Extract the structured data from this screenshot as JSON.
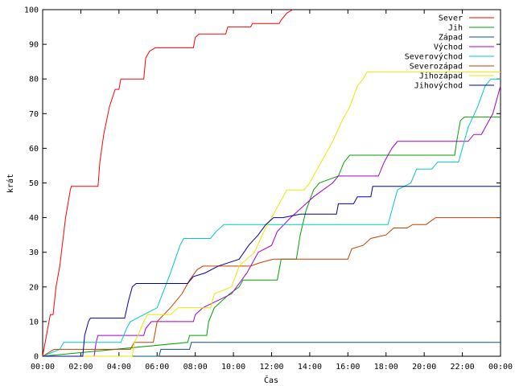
{
  "chart_data": {
    "type": "line",
    "xlabel": "Čas",
    "ylabel": "krát",
    "xlim": [
      0,
      24
    ],
    "ylim": [
      0,
      100
    ],
    "xticks": [
      "00:00",
      "02:00",
      "04:00",
      "06:00",
      "08:00",
      "10:00",
      "12:00",
      "14:00",
      "16:00",
      "18:00",
      "20:00",
      "22:00",
      "00:00"
    ],
    "yticks": [
      "0",
      "10",
      "20",
      "30",
      "40",
      "50",
      "60",
      "70",
      "80",
      "90",
      "100"
    ],
    "legend_position": "top-right",
    "series": [
      {
        "name": "Sever",
        "color": "#ff0000",
        "points": [
          [
            0,
            0
          ],
          [
            0.2,
            6
          ],
          [
            0.4,
            12
          ],
          [
            0.55,
            12
          ],
          [
            0.7,
            20
          ],
          [
            0.9,
            26
          ],
          [
            1.2,
            40
          ],
          [
            1.45,
            48
          ],
          [
            1.5,
            49
          ],
          [
            2.9,
            49
          ],
          [
            3.0,
            56
          ],
          [
            3.2,
            64
          ],
          [
            3.5,
            72
          ],
          [
            3.8,
            77
          ],
          [
            4.0,
            77
          ],
          [
            4.1,
            80
          ],
          [
            5.3,
            80
          ],
          [
            5.4,
            86
          ],
          [
            5.6,
            88
          ],
          [
            5.9,
            89
          ],
          [
            7.9,
            89
          ],
          [
            8.0,
            92
          ],
          [
            8.2,
            93
          ],
          [
            9.6,
            93
          ],
          [
            9.7,
            95
          ],
          [
            10.9,
            95
          ],
          [
            11.0,
            96
          ],
          [
            12.4,
            96
          ],
          [
            12.5,
            97
          ],
          [
            12.8,
            99
          ],
          [
            13.1,
            100
          ]
        ]
      },
      {
        "name": "Jih",
        "color": "#00a000",
        "points": [
          [
            0,
            0
          ],
          [
            7.6,
            4
          ],
          [
            7.7,
            6
          ],
          [
            8.6,
            6
          ],
          [
            8.7,
            10
          ],
          [
            9.0,
            14
          ],
          [
            9.8,
            18
          ],
          [
            10.3,
            20
          ],
          [
            10.5,
            22
          ],
          [
            12.3,
            22
          ],
          [
            12.5,
            28
          ],
          [
            13.3,
            28
          ],
          [
            13.5,
            35
          ],
          [
            13.8,
            42
          ],
          [
            14.2,
            48
          ],
          [
            14.5,
            50
          ],
          [
            15.5,
            52
          ],
          [
            15.8,
            56
          ],
          [
            16.1,
            58
          ],
          [
            21.6,
            58
          ],
          [
            21.7,
            62
          ],
          [
            21.9,
            68
          ],
          [
            22.1,
            69
          ],
          [
            24,
            69
          ]
        ]
      },
      {
        "name": "Západ",
        "color": "#00508f",
        "points": [
          [
            0,
            0
          ],
          [
            6.1,
            0
          ],
          [
            6.2,
            2
          ],
          [
            7.7,
            2
          ],
          [
            7.8,
            4
          ],
          [
            24,
            4
          ]
        ]
      },
      {
        "name": "Východ",
        "color": "#a000d0",
        "points": [
          [
            0,
            0
          ],
          [
            2.7,
            0
          ],
          [
            2.8,
            4
          ],
          [
            2.9,
            6
          ],
          [
            5.3,
            6
          ],
          [
            5.4,
            8
          ],
          [
            5.7,
            10
          ],
          [
            7.9,
            10
          ],
          [
            8.0,
            12
          ],
          [
            8.4,
            14
          ],
          [
            9.9,
            18
          ],
          [
            10.7,
            24
          ],
          [
            11.3,
            30
          ],
          [
            12.0,
            32
          ],
          [
            12.3,
            36
          ],
          [
            13.0,
            40
          ],
          [
            13.8,
            44
          ],
          [
            14.2,
            46
          ],
          [
            15.2,
            50
          ],
          [
            15.5,
            52
          ],
          [
            17.6,
            52
          ],
          [
            17.9,
            56
          ],
          [
            18.3,
            60
          ],
          [
            18.6,
            62
          ],
          [
            22.3,
            62
          ],
          [
            22.6,
            64
          ],
          [
            23.0,
            64
          ],
          [
            23.2,
            66
          ],
          [
            23.6,
            70
          ],
          [
            23.9,
            76
          ],
          [
            24,
            78
          ]
        ]
      },
      {
        "name": "Severovýchod",
        "color": "#00c8c8",
        "points": [
          [
            0,
            0
          ],
          [
            0.9,
            2
          ],
          [
            1.1,
            4
          ],
          [
            4.1,
            4
          ],
          [
            4.4,
            8
          ],
          [
            4.6,
            10
          ],
          [
            6.0,
            14
          ],
          [
            6.7,
            24
          ],
          [
            7.2,
            32
          ],
          [
            7.4,
            34
          ],
          [
            8.8,
            34
          ],
          [
            9.1,
            36
          ],
          [
            9.5,
            38
          ],
          [
            14.2,
            38
          ],
          [
            14.8,
            38
          ],
          [
            18.1,
            38
          ],
          [
            18.4,
            44
          ],
          [
            18.6,
            48
          ],
          [
            19.3,
            50
          ],
          [
            19.6,
            54
          ],
          [
            20.4,
            54
          ],
          [
            20.7,
            56
          ],
          [
            21.8,
            56
          ],
          [
            22.0,
            60
          ],
          [
            22.3,
            66
          ],
          [
            22.8,
            72
          ],
          [
            23.2,
            78
          ],
          [
            23.5,
            80
          ],
          [
            24,
            80
          ]
        ]
      },
      {
        "name": "Severozápad",
        "color": "#c04000",
        "points": [
          [
            0,
            0
          ],
          [
            0.6,
            2
          ],
          [
            1.2,
            2
          ],
          [
            4.6,
            2
          ],
          [
            4.8,
            4
          ],
          [
            5.8,
            4
          ],
          [
            6.0,
            10
          ],
          [
            6.7,
            14
          ],
          [
            7.3,
            18
          ],
          [
            7.7,
            22
          ],
          [
            8.1,
            25
          ],
          [
            8.4,
            26
          ],
          [
            10.9,
            26
          ],
          [
            11.4,
            27
          ],
          [
            12.1,
            28
          ],
          [
            16.0,
            28
          ],
          [
            16.2,
            31
          ],
          [
            16.8,
            32
          ],
          [
            17.2,
            34
          ],
          [
            18.0,
            35
          ],
          [
            18.4,
            37
          ],
          [
            19.1,
            37
          ],
          [
            19.4,
            38
          ],
          [
            20.1,
            38
          ],
          [
            20.6,
            40
          ],
          [
            24,
            40
          ]
        ]
      },
      {
        "name": "Jihozápad",
        "color": "#e8e800",
        "points": [
          [
            0,
            0
          ],
          [
            4.7,
            0
          ],
          [
            4.8,
            4
          ],
          [
            5.0,
            6
          ],
          [
            5.3,
            10
          ],
          [
            5.5,
            12
          ],
          [
            6.7,
            12
          ],
          [
            7.1,
            14
          ],
          [
            8.8,
            14
          ],
          [
            9.0,
            18
          ],
          [
            9.9,
            20
          ],
          [
            10.3,
            26
          ],
          [
            11.1,
            30
          ],
          [
            11.6,
            36
          ],
          [
            12.0,
            40
          ],
          [
            12.4,
            44
          ],
          [
            12.8,
            48
          ],
          [
            13.7,
            48
          ],
          [
            14.0,
            50
          ],
          [
            14.6,
            56
          ],
          [
            15.2,
            62
          ],
          [
            15.7,
            68
          ],
          [
            16.1,
            72
          ],
          [
            16.5,
            78
          ],
          [
            16.8,
            80
          ],
          [
            17.0,
            82
          ],
          [
            23.7,
            82
          ],
          [
            24,
            82
          ]
        ]
      },
      {
        "name": "Jihovýchod",
        "color": "#0000a0",
        "points": [
          [
            0,
            0
          ],
          [
            2.1,
            0
          ],
          [
            2.2,
            6
          ],
          [
            2.4,
            10
          ],
          [
            2.5,
            11
          ],
          [
            4.3,
            11
          ],
          [
            4.5,
            16
          ],
          [
            4.7,
            20
          ],
          [
            4.9,
            21
          ],
          [
            7.6,
            21
          ],
          [
            7.9,
            23
          ],
          [
            8.5,
            24
          ],
          [
            9.2,
            26
          ],
          [
            10.3,
            28
          ],
          [
            10.8,
            32
          ],
          [
            11.3,
            35
          ],
          [
            11.7,
            38
          ],
          [
            12.1,
            40
          ],
          [
            12.6,
            40
          ],
          [
            13.5,
            41
          ],
          [
            15.4,
            41
          ],
          [
            15.5,
            44
          ],
          [
            16.3,
            44
          ],
          [
            16.5,
            46
          ],
          [
            17.2,
            46
          ],
          [
            17.3,
            49
          ],
          [
            24,
            49
          ]
        ]
      }
    ]
  }
}
